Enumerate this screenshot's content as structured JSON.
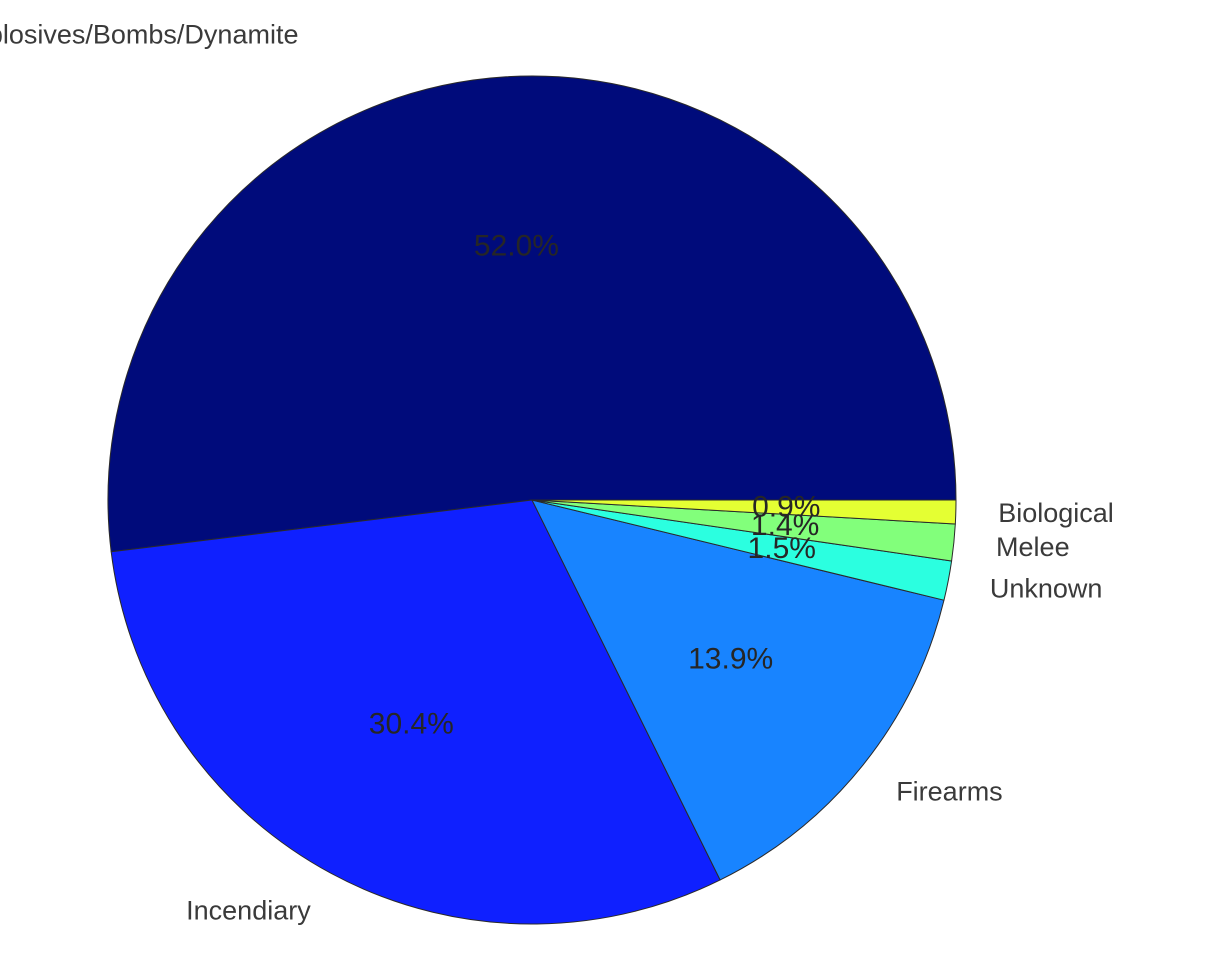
{
  "chart_data": {
    "type": "pie",
    "title": "",
    "categories": [
      "Explosives/Bombs/Dynamite",
      "Incendiary",
      "Firearms",
      "Unknown",
      "Melee",
      "Biological"
    ],
    "values": [
      52.0,
      30.4,
      13.9,
      1.5,
      1.4,
      0.9
    ],
    "value_labels": [
      "52.0%",
      "30.4%",
      "13.9%",
      "1.5%",
      "1.4%",
      "0.9%"
    ],
    "colors": [
      "#000b7b",
      "#0f20ff",
      "#1884ff",
      "#2bffe0",
      "#82ff7b",
      "#e4ff33"
    ],
    "start_angle_deg": 0,
    "direction": "counterclockwise",
    "legend": "none"
  }
}
